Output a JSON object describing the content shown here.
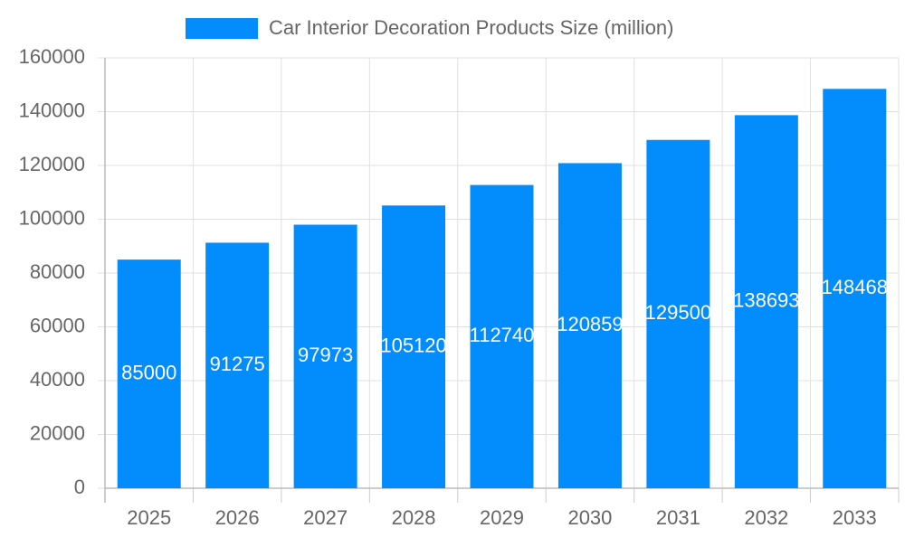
{
  "chart_data": {
    "type": "bar",
    "categories": [
      "2025",
      "2026",
      "2027",
      "2028",
      "2029",
      "2030",
      "2031",
      "2032",
      "2033"
    ],
    "series": [
      {
        "name": "Car Interior Decoration Products Size (million)",
        "color": "#038cfc",
        "values": [
          85000,
          91275,
          97973,
          105120,
          112740,
          120859,
          129500,
          138693,
          148468
        ]
      }
    ],
    "ylim": [
      0,
      160000
    ],
    "yticks": [
      0,
      20000,
      40000,
      60000,
      80000,
      100000,
      120000,
      140000,
      160000
    ],
    "grid": true,
    "value_labels_shown": true,
    "legend": "top"
  }
}
